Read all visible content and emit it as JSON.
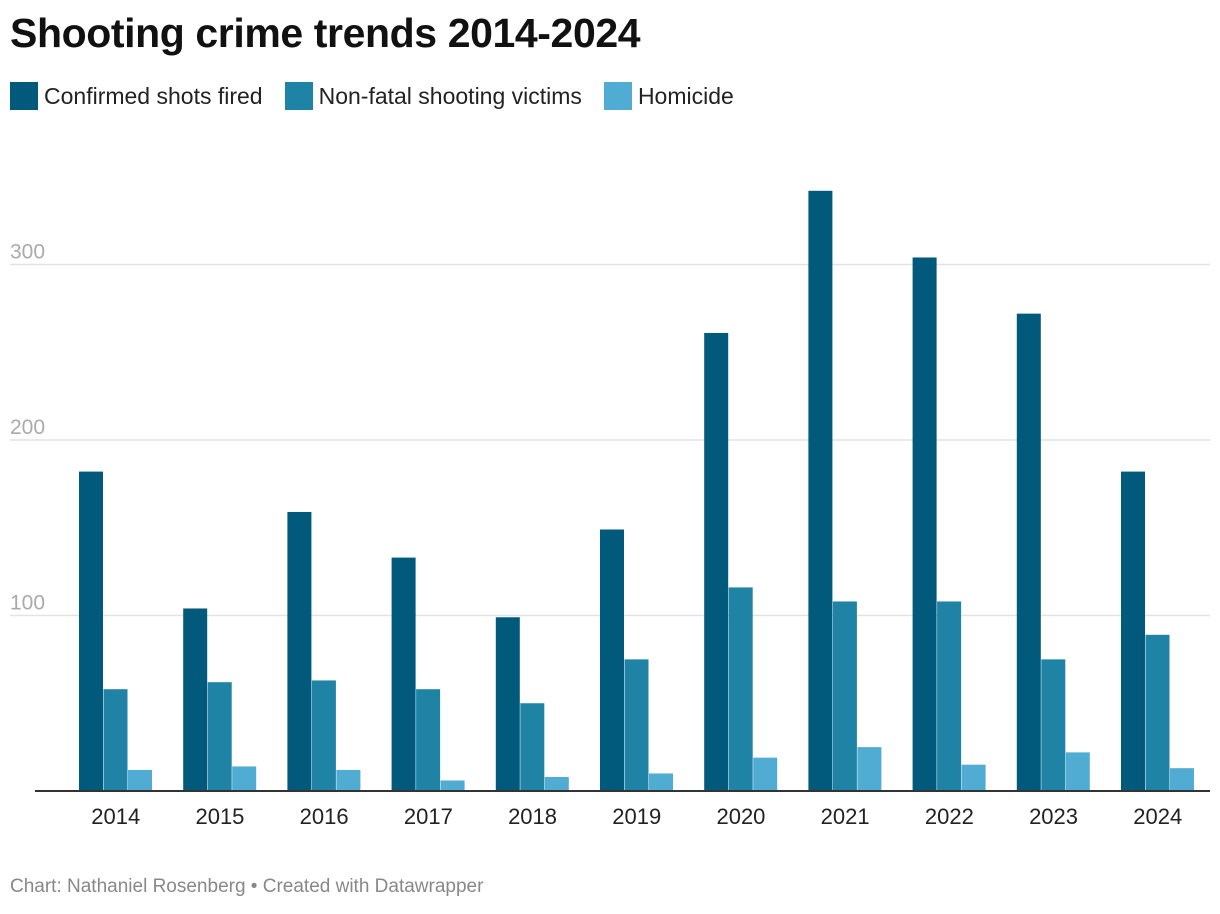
{
  "chart_data": {
    "type": "bar",
    "title": "Shooting crime trends 2014-2024",
    "categories": [
      "2014",
      "2015",
      "2016",
      "2017",
      "2018",
      "2019",
      "2020",
      "2021",
      "2022",
      "2023",
      "2024"
    ],
    "series": [
      {
        "name": "Confirmed shots fired",
        "color": "#015a7b",
        "values": [
          182,
          104,
          159,
          133,
          99,
          149,
          261,
          342,
          304,
          272,
          182
        ]
      },
      {
        "name": "Non-fatal shooting victims",
        "color": "#1e83a5",
        "values": [
          58,
          62,
          63,
          58,
          50,
          75,
          116,
          108,
          108,
          75,
          89
        ]
      },
      {
        "name": "Homicide",
        "color": "#50acd2",
        "values": [
          12,
          14,
          12,
          6,
          8,
          10,
          19,
          25,
          15,
          22,
          13
        ]
      }
    ],
    "yticks": [
      100,
      200,
      300
    ],
    "ylim": [
      0,
      350
    ],
    "grid": true,
    "legend_position": "top-left"
  },
  "credit": "Chart: Nathaniel Rosenberg • Created with Datawrapper"
}
